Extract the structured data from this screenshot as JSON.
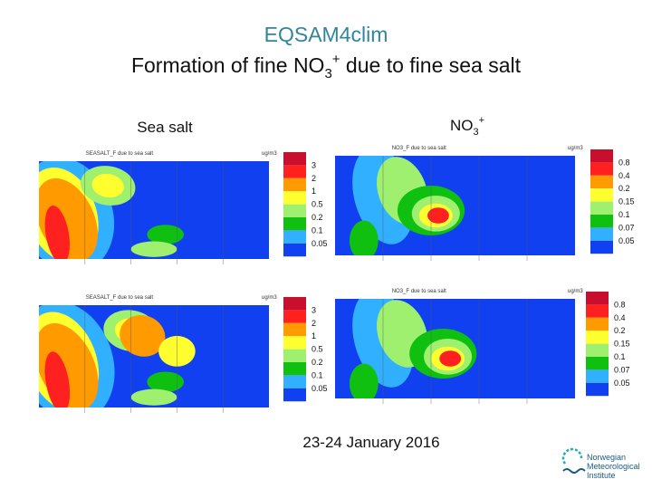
{
  "header": {
    "title": "EQSAM4clim",
    "subtitle": {
      "text": "Formation of fine NO",
      "sub": "3",
      "sup": "+",
      "rest": " due to fine sea salt"
    }
  },
  "columns": [
    {
      "label": "Sea salt"
    },
    {
      "label": "NO",
      "sub": "3",
      "sup": "+"
    }
  ],
  "panels": [
    {
      "title": "SEASALT_F due to sea salt",
      "unit": "ug/m3",
      "legend": [
        "3",
        "2",
        "1",
        "0.5",
        "0.2",
        "0.1",
        "0.05"
      ]
    },
    {
      "title": "NO3_F due to sea salt",
      "unit": "ug/m3",
      "legend": [
        "0.8",
        "0.4",
        "0.2",
        "0.15",
        "0.1",
        "0.07",
        "0.05"
      ]
    },
    {
      "title": "SEASALT_F due to sea salt",
      "unit": "ug/m3",
      "legend": [
        "3",
        "2",
        "1",
        "0.5",
        "0.2",
        "0.1",
        "0.05"
      ]
    },
    {
      "title": "NO3_F due to sea salt",
      "unit": "ug/m3",
      "legend": [
        "0.8",
        "0.4",
        "0.2",
        "0.15",
        "0.1",
        "0.07",
        "0.05"
      ]
    }
  ],
  "date": "23-24 January 2016",
  "logo": {
    "lines": [
      "Norwegian",
      "Meteorological",
      "Institute"
    ]
  }
}
